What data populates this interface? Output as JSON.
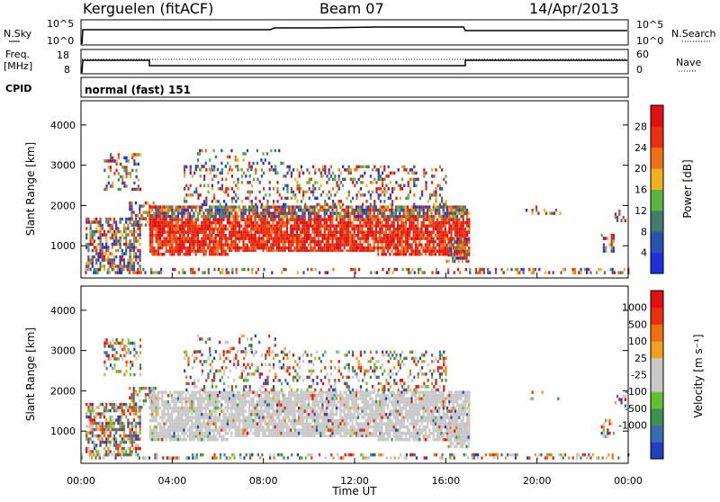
{
  "header": {
    "station": "Kerguelen (fitACF)",
    "beam": "Beam 07",
    "date": "14/Apr/2013"
  },
  "noise_panel": {
    "left_label": "N.Sky",
    "right_label": "N.Search",
    "left_ticks": [
      "10^5",
      "10^0"
    ],
    "right_ticks": [
      "10^5",
      "10^0"
    ]
  },
  "freq_panel": {
    "left_label_1": "Freq.",
    "left_label_2": "[MHz]",
    "right_label": "Nave",
    "left_ticks": [
      "18",
      "8"
    ],
    "right_ticks": [
      "60",
      "0"
    ]
  },
  "cpid": {
    "label": "CPID",
    "value": "normal (fast) 151"
  },
  "chart_data": [
    {
      "type": "heatmap",
      "name": "power",
      "ylabel": "Slant Range [km]",
      "ylim": [
        200,
        4600
      ],
      "yticks": [
        "1000",
        "2000",
        "3000",
        "4000"
      ],
      "colorbar_label": "Power [dB]",
      "colorbar_ticks": [
        "4",
        "8",
        "12",
        "16",
        "20",
        "24",
        "28"
      ],
      "colors": [
        "#1f2fe0",
        "#2a52b0",
        "#3f7d6a",
        "#58b53e",
        "#f0b020",
        "#f07018",
        "#e83010",
        "#e01010"
      ]
    },
    {
      "type": "heatmap",
      "name": "velocity",
      "ylabel": "Slant Range [km]",
      "ylim": [
        200,
        4600
      ],
      "yticks": [
        "1000",
        "2000",
        "3000",
        "4000"
      ],
      "colorbar_label": "Velocity [m s⁻¹]",
      "colorbar_ticks": [
        "1000",
        "500",
        "100",
        "25",
        "-25",
        "-100",
        "-500",
        "-1000"
      ],
      "colors": [
        "#2040c0",
        "#3a6ab0",
        "#3f8f4f",
        "#60c030",
        "#c8c8c8",
        "#c8c8c8",
        "#f0a020",
        "#f07010",
        "#e83010",
        "#e01010"
      ]
    }
  ],
  "time_axis": {
    "label": "Time UT",
    "ticks": [
      "00:00",
      "04:00",
      "08:00",
      "12:00",
      "16:00",
      "20:00",
      "00:00"
    ]
  }
}
